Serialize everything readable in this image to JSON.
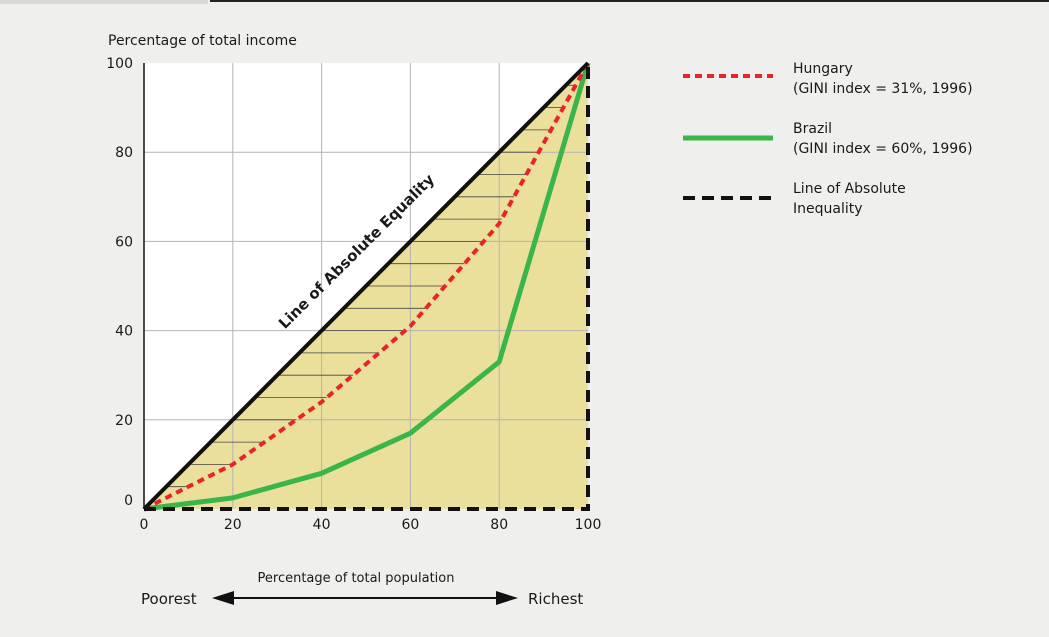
{
  "chart_data": {
    "type": "line",
    "title": "",
    "ylabel": "Percentage of total income",
    "xlabel": "Percentage of total population",
    "x_left_label": "Poorest",
    "x_right_label": "Richest",
    "xlim": [
      0,
      100
    ],
    "ylim": [
      0,
      100
    ],
    "x_ticks": [
      "0",
      "20",
      "40",
      "60",
      "80",
      "100"
    ],
    "y_ticks": [
      "0",
      "20",
      "40",
      "60",
      "80",
      "100"
    ],
    "grid": true,
    "legend_position": "right",
    "equality_line_label": "Line of Absolute Equality",
    "series": [
      {
        "name": "Hungary",
        "legend_line2": "(GINI index = 31%, 1996)",
        "style": "dotted",
        "color": "#e8232a",
        "x": [
          0,
          20,
          40,
          60,
          80,
          100
        ],
        "y": [
          0,
          10,
          24,
          41,
          64,
          100
        ]
      },
      {
        "name": "Brazil",
        "legend_line2": "(GINI index = 60%, 1996)",
        "style": "solid",
        "color": "#3ab54a",
        "x": [
          0,
          20,
          40,
          60,
          80,
          100
        ],
        "y": [
          0,
          2.5,
          8,
          17,
          33,
          100
        ]
      },
      {
        "name": "Line of Absolute",
        "legend_line2": "Inequality",
        "style": "dashed",
        "color": "#111111",
        "x": [
          0,
          100,
          100
        ],
        "y": [
          0,
          0,
          100
        ]
      }
    ],
    "fill_color": "#eadf9b"
  }
}
